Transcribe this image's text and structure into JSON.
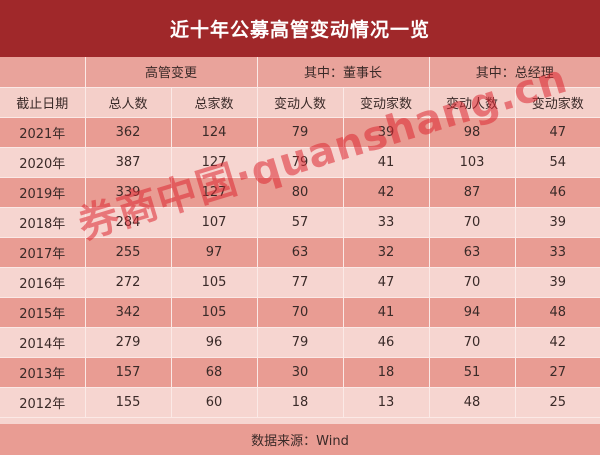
{
  "title": "近十年公募高管变动情况一览",
  "header": {
    "groups": [
      "高管变更",
      "其中：董事长",
      "其中：总经理"
    ],
    "columns": [
      "截止日期",
      "总人数",
      "总家数",
      "变动人数",
      "变动家数",
      "变动人数",
      "变动家数"
    ]
  },
  "rows": [
    [
      "2021年",
      "362",
      "124",
      "79",
      "39",
      "98",
      "47"
    ],
    [
      "2020年",
      "387",
      "127",
      "79",
      "41",
      "103",
      "54"
    ],
    [
      "2019年",
      "339",
      "127",
      "80",
      "42",
      "87",
      "46"
    ],
    [
      "2018年",
      "284",
      "107",
      "57",
      "33",
      "70",
      "39"
    ],
    [
      "2017年",
      "255",
      "97",
      "63",
      "32",
      "63",
      "33"
    ],
    [
      "2016年",
      "272",
      "105",
      "77",
      "47",
      "70",
      "39"
    ],
    [
      "2015年",
      "342",
      "105",
      "70",
      "41",
      "94",
      "48"
    ],
    [
      "2014年",
      "279",
      "96",
      "79",
      "46",
      "70",
      "42"
    ],
    [
      "2013年",
      "157",
      "68",
      "30",
      "18",
      "51",
      "27"
    ],
    [
      "2012年",
      "155",
      "60",
      "18",
      "13",
      "48",
      "25"
    ]
  ],
  "footer": "数据来源：Wind",
  "watermark": "券商中国·quanshang.cn",
  "colors": {
    "title_bg": "#a0282a",
    "dark_row": "#e99c93",
    "light_row": "#f6d5d0"
  }
}
